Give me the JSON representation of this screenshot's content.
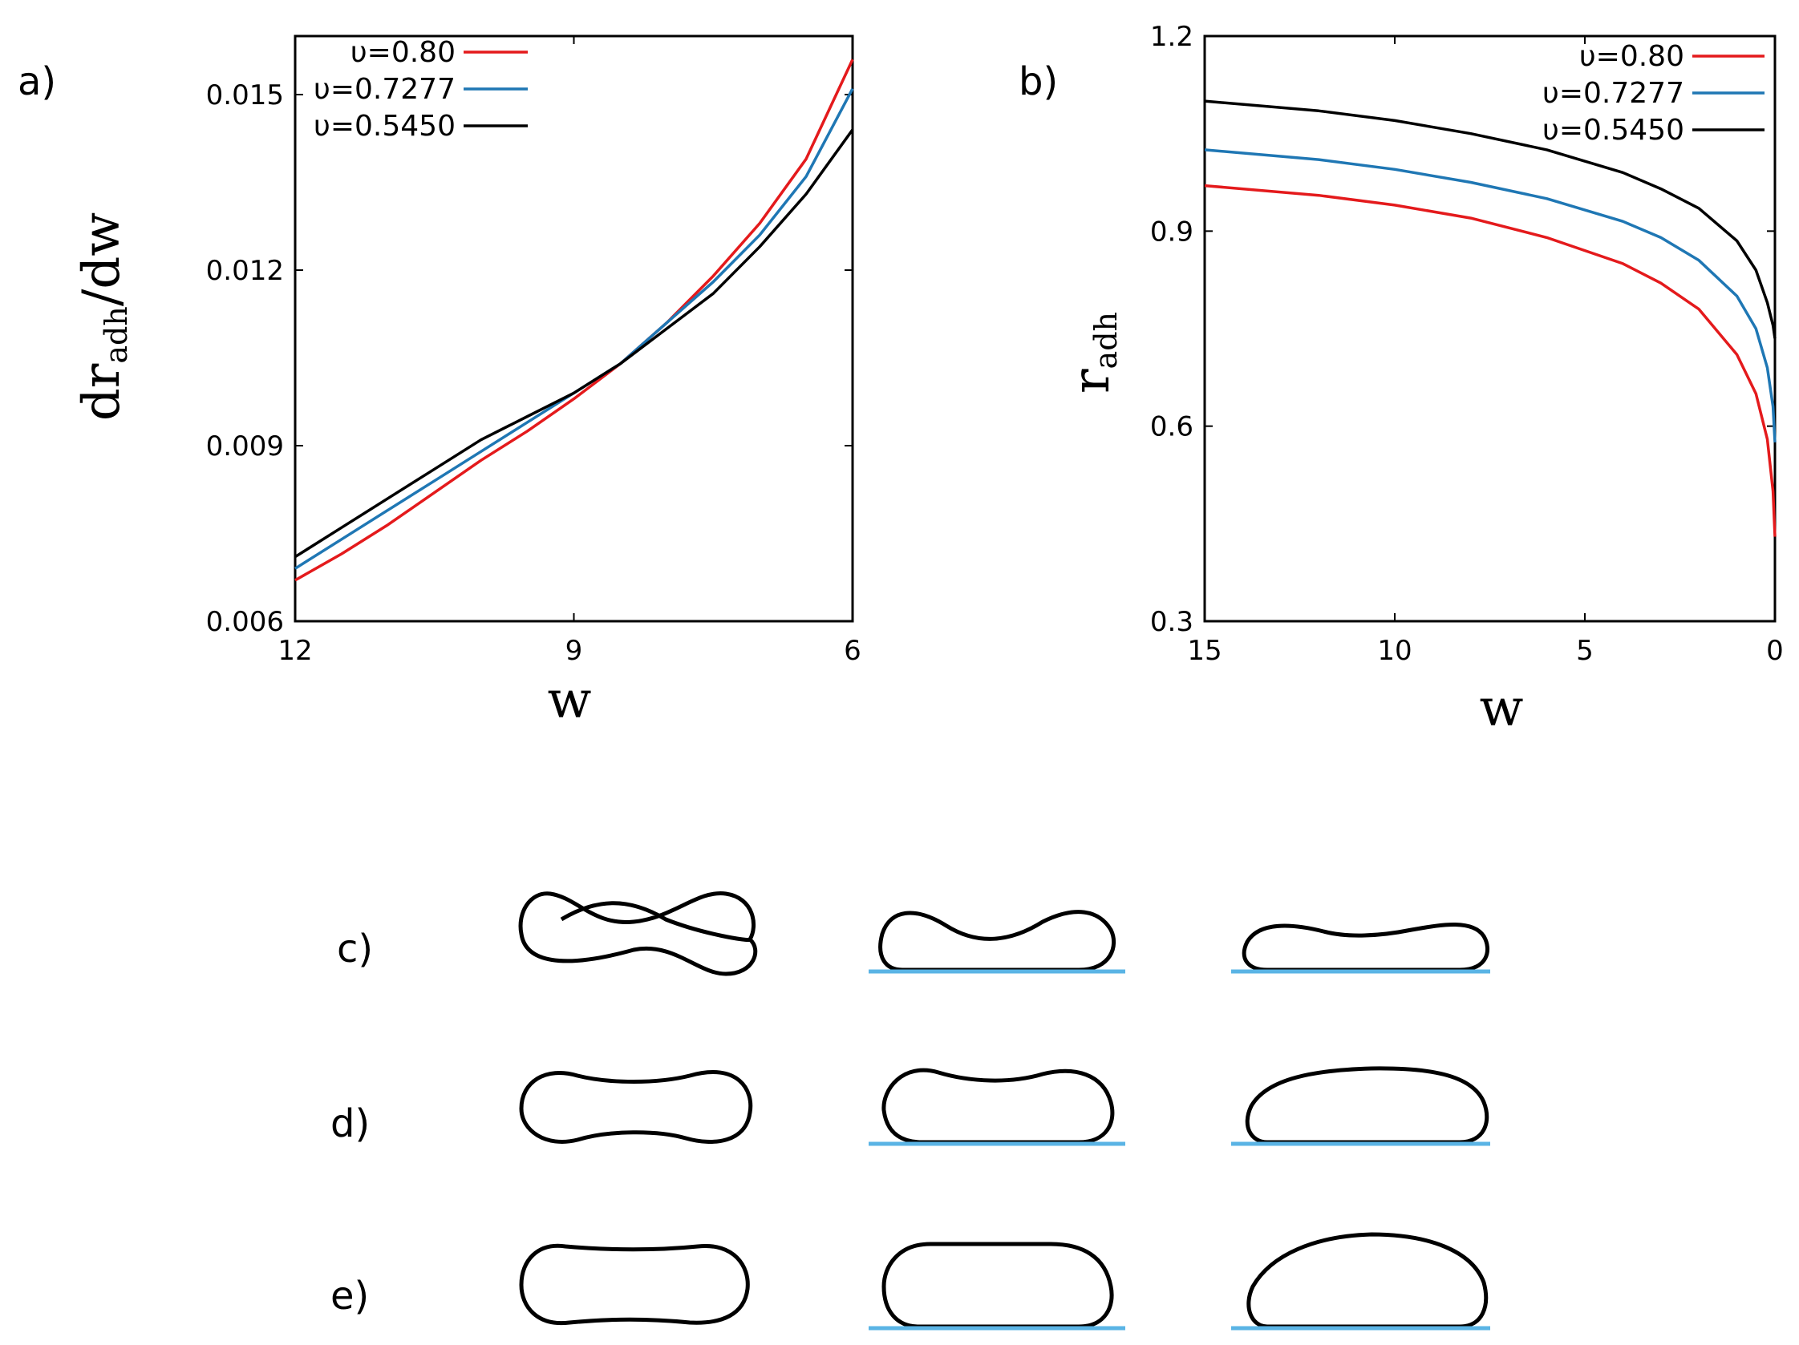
{
  "colors": {
    "red": "#e41a1c",
    "blue": "#1f77b4",
    "black": "#000000",
    "substrate": "#5ab4e5"
  },
  "panel_labels": {
    "a": "a)",
    "b": "b)",
    "c": "c)",
    "d": "d)",
    "e": "e)"
  },
  "chart_data": [
    {
      "type": "line",
      "panel": "a)",
      "xlabel": "w",
      "ylabel": "dr",
      "ylabel_sub": "adh",
      "ylabel_tail": "/dw",
      "xlim": [
        12,
        6
      ],
      "ylim": [
        0.006,
        0.016
      ],
      "xticks": [
        12,
        9,
        6
      ],
      "xtick_labels": [
        "12",
        "9",
        "6"
      ],
      "yticks": [
        0.006,
        0.009,
        0.012,
        0.015
      ],
      "ytick_labels": [
        "0.006",
        "0.009",
        "0.012",
        "0.015"
      ],
      "legend_position": "top-left",
      "series": [
        {
          "name": "υ=0.80",
          "color": "#e41a1c",
          "x": [
            12,
            11.5,
            11,
            10.5,
            10,
            9.5,
            9,
            8.5,
            8,
            7.5,
            7,
            6.5,
            6
          ],
          "values": [
            0.0067,
            0.00715,
            0.00765,
            0.0082,
            0.00875,
            0.00925,
            0.0098,
            0.0104,
            0.0111,
            0.0119,
            0.0128,
            0.0139,
            0.0156
          ]
        },
        {
          "name": "υ=0.7277",
          "color": "#1f77b4",
          "x": [
            12,
            11.5,
            11,
            10.5,
            10,
            9.5,
            9,
            8.5,
            8,
            7.5,
            7,
            6.5,
            6
          ],
          "values": [
            0.0069,
            0.0074,
            0.0079,
            0.0084,
            0.0089,
            0.0094,
            0.0099,
            0.0104,
            0.0111,
            0.0118,
            0.0126,
            0.0136,
            0.0151
          ]
        },
        {
          "name": "υ=0.5450",
          "color": "#000000",
          "x": [
            12,
            11.5,
            11,
            10.5,
            10,
            9.5,
            9,
            8.5,
            8,
            7.5,
            7,
            6.5,
            6
          ],
          "values": [
            0.0071,
            0.0076,
            0.0081,
            0.0086,
            0.0091,
            0.0095,
            0.0099,
            0.0104,
            0.011,
            0.0116,
            0.0124,
            0.0133,
            0.0144
          ]
        }
      ]
    },
    {
      "type": "line",
      "panel": "b)",
      "xlabel": "w",
      "ylabel": "r",
      "ylabel_sub": "adh",
      "xlim": [
        15,
        0
      ],
      "ylim": [
        0.3,
        1.2
      ],
      "xticks": [
        15,
        10,
        5,
        0
      ],
      "xtick_labels": [
        "15",
        "10",
        "5",
        "0"
      ],
      "yticks": [
        0.3,
        0.6,
        0.9,
        1.2
      ],
      "ytick_labels": [
        "0.3",
        "0.6",
        "0.9",
        "1.2"
      ],
      "legend_position": "top-right",
      "series": [
        {
          "name": "υ=0.80",
          "color": "#e41a1c",
          "x": [
            15,
            12,
            10,
            8,
            6,
            4,
            3,
            2,
            1,
            0.5,
            0.2,
            0.05,
            0
          ],
          "values": [
            0.97,
            0.955,
            0.94,
            0.92,
            0.89,
            0.85,
            0.82,
            0.78,
            0.71,
            0.65,
            0.58,
            0.5,
            0.43
          ]
        },
        {
          "name": "υ=0.7277",
          "color": "#1f77b4",
          "x": [
            15,
            12,
            10,
            8,
            6,
            4,
            3,
            2,
            1,
            0.5,
            0.2,
            0.05,
            0
          ],
          "values": [
            1.025,
            1.01,
            0.995,
            0.975,
            0.95,
            0.915,
            0.89,
            0.855,
            0.8,
            0.75,
            0.69,
            0.63,
            0.575
          ]
        },
        {
          "name": "υ=0.5450",
          "color": "#000000",
          "x": [
            15,
            12,
            10,
            8,
            6,
            4,
            3,
            2,
            1,
            0.5,
            0.2,
            0.05,
            0
          ],
          "values": [
            1.1,
            1.085,
            1.07,
            1.05,
            1.025,
            0.99,
            0.965,
            0.935,
            0.885,
            0.84,
            0.79,
            0.755,
            0.735
          ]
        }
      ]
    }
  ]
}
